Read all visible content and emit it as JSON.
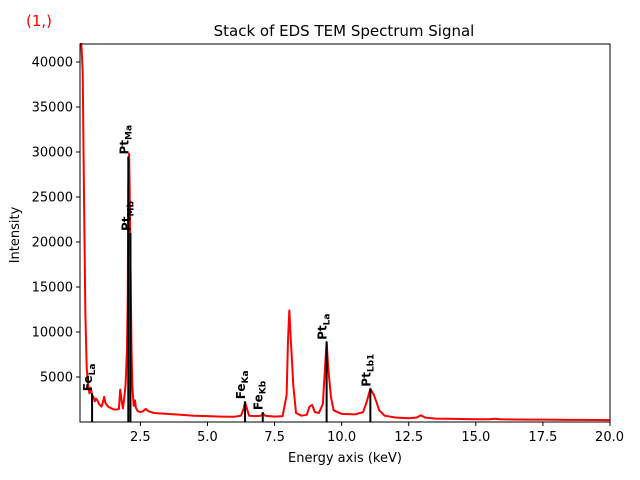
{
  "corner_label": "(1,)",
  "chart_data": {
    "type": "line",
    "title": "Stack of EDS TEM Spectrum Signal",
    "xlabel": "Energy axis (keV)",
    "ylabel": "Intensity",
    "xlim": [
      0.25,
      20.0
    ],
    "ylim": [
      0,
      42000
    ],
    "grid": false,
    "x_ticks": [
      2.5,
      5.0,
      7.5,
      10.0,
      12.5,
      15.0,
      17.5,
      20.0
    ],
    "x_tick_labels": [
      "2.5",
      "5.0",
      "7.5",
      "10.0",
      "12.5",
      "15.0",
      "17.5",
      "20.0"
    ],
    "y_ticks": [
      5000,
      10000,
      15000,
      20000,
      25000,
      30000,
      35000,
      40000
    ],
    "y_tick_labels": [
      "5000",
      "10000",
      "15000",
      "20000",
      "25000",
      "30000",
      "35000",
      "40000"
    ],
    "series": [
      {
        "color": "#ff0000",
        "points": [
          [
            0.25,
            42000
          ],
          [
            0.3,
            42000
          ],
          [
            0.35,
            39000
          ],
          [
            0.4,
            25000
          ],
          [
            0.45,
            12000
          ],
          [
            0.5,
            6000
          ],
          [
            0.55,
            4200
          ],
          [
            0.6,
            3200
          ],
          [
            0.65,
            3800
          ],
          [
            0.7,
            3000
          ],
          [
            0.75,
            2800
          ],
          [
            0.8,
            2300
          ],
          [
            0.85,
            2600
          ],
          [
            0.9,
            2400
          ],
          [
            0.95,
            2050
          ],
          [
            1.0,
            1850
          ],
          [
            1.05,
            1700
          ],
          [
            1.1,
            2150
          ],
          [
            1.15,
            2800
          ],
          [
            1.2,
            2100
          ],
          [
            1.3,
            1700
          ],
          [
            1.4,
            1550
          ],
          [
            1.5,
            1400
          ],
          [
            1.6,
            1380
          ],
          [
            1.7,
            1450
          ],
          [
            1.75,
            3600
          ],
          [
            1.8,
            2400
          ],
          [
            1.85,
            1500
          ],
          [
            1.9,
            2700
          ],
          [
            1.95,
            4200
          ],
          [
            2.0,
            8000
          ],
          [
            2.03,
            14000
          ],
          [
            2.05,
            26000
          ],
          [
            2.08,
            29800
          ],
          [
            2.1,
            26000
          ],
          [
            2.13,
            18000
          ],
          [
            2.17,
            8000
          ],
          [
            2.2,
            4000
          ],
          [
            2.25,
            1800
          ],
          [
            2.3,
            2400
          ],
          [
            2.33,
            1600
          ],
          [
            2.4,
            1200
          ],
          [
            2.5,
            1100
          ],
          [
            2.6,
            1200
          ],
          [
            2.7,
            1450
          ],
          [
            2.8,
            1200
          ],
          [
            3.0,
            1000
          ],
          [
            3.5,
            900
          ],
          [
            4.0,
            800
          ],
          [
            4.5,
            700
          ],
          [
            5.0,
            650
          ],
          [
            5.5,
            600
          ],
          [
            6.0,
            580
          ],
          [
            6.25,
            700
          ],
          [
            6.35,
            1500
          ],
          [
            6.4,
            2200
          ],
          [
            6.45,
            1700
          ],
          [
            6.55,
            700
          ],
          [
            6.8,
            650
          ],
          [
            7.0,
            700
          ],
          [
            7.06,
            950
          ],
          [
            7.15,
            700
          ],
          [
            7.5,
            600
          ],
          [
            7.8,
            650
          ],
          [
            7.95,
            3000
          ],
          [
            8.0,
            9000
          ],
          [
            8.05,
            12400
          ],
          [
            8.1,
            9500
          ],
          [
            8.2,
            4000
          ],
          [
            8.3,
            1000
          ],
          [
            8.5,
            700
          ],
          [
            8.7,
            800
          ],
          [
            8.8,
            1700
          ],
          [
            8.9,
            1900
          ],
          [
            9.0,
            1100
          ],
          [
            9.15,
            1000
          ],
          [
            9.3,
            2000
          ],
          [
            9.4,
            7000
          ],
          [
            9.44,
            8900
          ],
          [
            9.5,
            6000
          ],
          [
            9.6,
            2800
          ],
          [
            9.7,
            1300
          ],
          [
            10.0,
            900
          ],
          [
            10.5,
            850
          ],
          [
            10.8,
            1100
          ],
          [
            10.95,
            2400
          ],
          [
            11.07,
            3700
          ],
          [
            11.2,
            3000
          ],
          [
            11.3,
            2200
          ],
          [
            11.4,
            1300
          ],
          [
            11.6,
            700
          ],
          [
            12.0,
            500
          ],
          [
            12.5,
            420
          ],
          [
            12.8,
            500
          ],
          [
            12.95,
            750
          ],
          [
            13.1,
            500
          ],
          [
            13.5,
            380
          ],
          [
            14.0,
            360
          ],
          [
            14.5,
            330
          ],
          [
            15.0,
            310
          ],
          [
            15.5,
            300
          ],
          [
            15.7,
            360
          ],
          [
            15.9,
            300
          ],
          [
            16.5,
            280
          ],
          [
            17.0,
            270
          ],
          [
            17.5,
            260
          ],
          [
            18.0,
            250
          ],
          [
            18.5,
            240
          ],
          [
            19.0,
            230
          ],
          [
            19.5,
            220
          ],
          [
            20.0,
            210
          ]
        ]
      }
    ],
    "markers": [
      {
        "x": 0.7,
        "height": 3200,
        "element": "Fe",
        "line": "La"
      },
      {
        "x": 2.05,
        "height": 29500,
        "element": "Pt",
        "line": "Ma"
      },
      {
        "x": 2.13,
        "height": 21000,
        "element": "Pt",
        "line": "Mb"
      },
      {
        "x": 6.4,
        "height": 2300,
        "element": "Fe",
        "line": "Ka"
      },
      {
        "x": 7.06,
        "height": 1100,
        "element": "Fe",
        "line": "Kb"
      },
      {
        "x": 9.44,
        "height": 8900,
        "element": "Pt",
        "line": "La"
      },
      {
        "x": 11.07,
        "height": 3700,
        "element": "Pt",
        "line": "Lb1"
      }
    ]
  }
}
